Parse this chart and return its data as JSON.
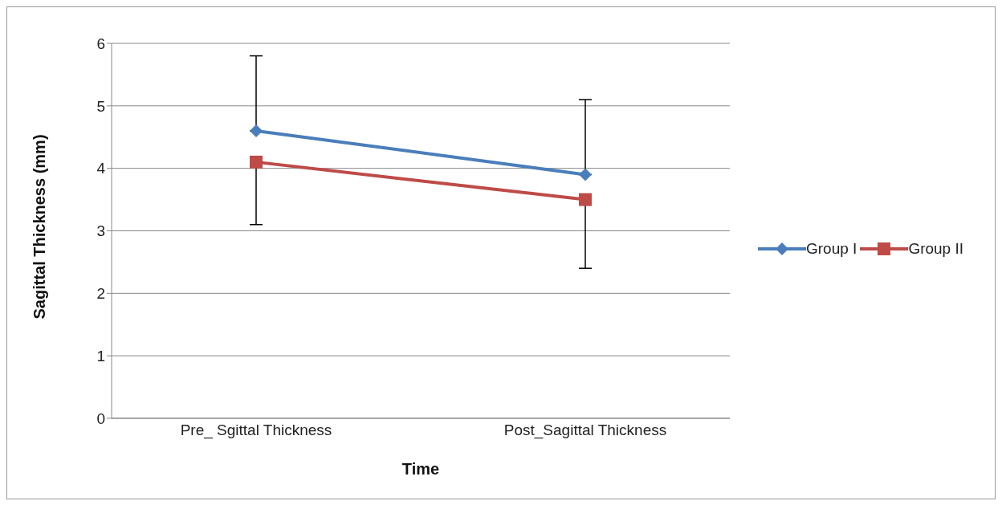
{
  "chart_data": {
    "type": "line",
    "xlabel": "Time",
    "ylabel": "Sagittal Thickness (mm)",
    "categories": [
      "Pre_ Sgittal Thickness",
      "Post_Sagittal Thickness"
    ],
    "series": [
      {
        "name": "Group I",
        "color": "#4a7ebb",
        "values": [
          4.6,
          3.9
        ],
        "errors": [
          [
            4.6,
            5.8
          ],
          [
            3.9,
            5.1
          ]
        ],
        "marker": "diamond"
      },
      {
        "name": "Group II",
        "color": "#be4b48",
        "values": [
          4.1,
          3.5
        ],
        "errors": [
          [
            3.1,
            4.1
          ],
          [
            2.4,
            3.5
          ]
        ],
        "marker": "square"
      }
    ],
    "ylim": [
      0,
      6
    ],
    "yticks": [
      0,
      1,
      2,
      3,
      4,
      5,
      6
    ],
    "grid": "y",
    "legend": "right"
  }
}
